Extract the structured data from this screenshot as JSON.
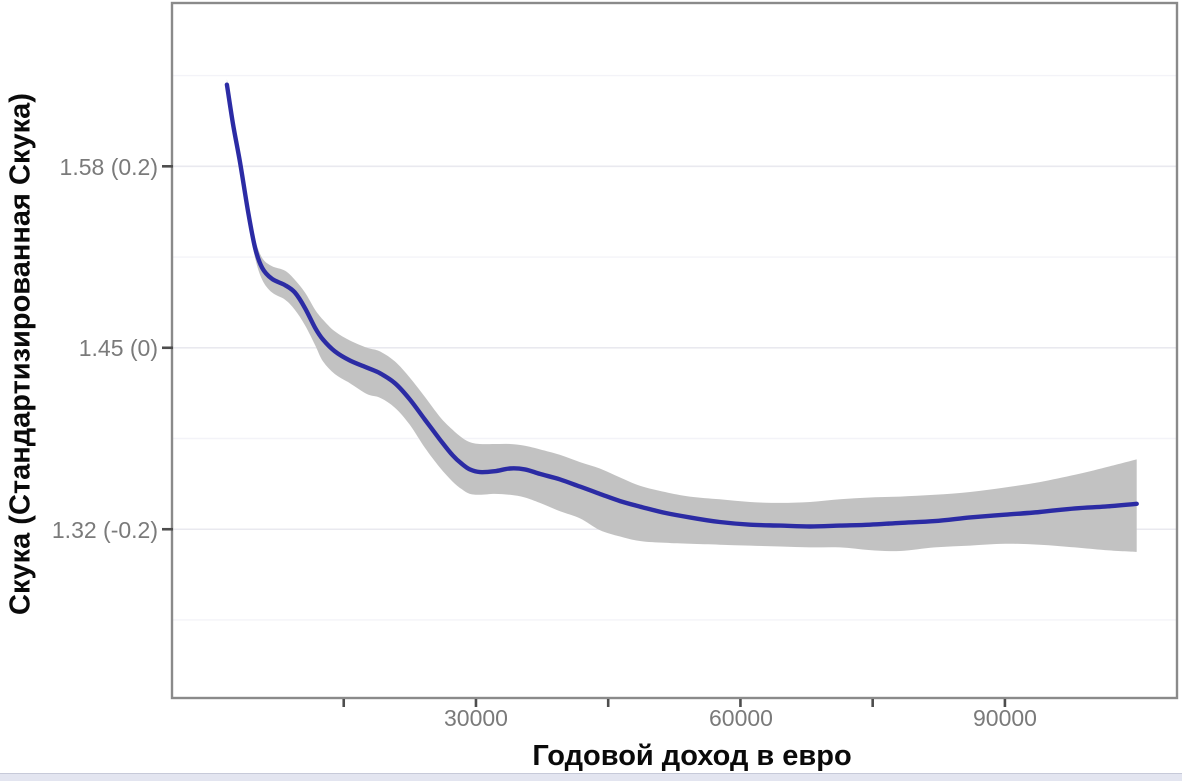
{
  "figure": {
    "background_color": "#ffffff",
    "bottom_strip_color": "#e3e5f0"
  },
  "chart_data": {
    "type": "line",
    "title": "",
    "xlabel": "Годовой доход в евро",
    "ylabel": "Скука (Стандартизированная Скука)",
    "legend": "none",
    "grid": "horizontal-only",
    "xlim": [
      -4480,
      109520
    ],
    "ylim": [
      -0.386,
      0.38
    ],
    "x_ticks": [
      {
        "value": 30000,
        "label": "30000"
      },
      {
        "value": 60000,
        "label": "60000"
      },
      {
        "value": 90000,
        "label": "90000"
      }
    ],
    "x_tick_values_all": [
      15000,
      30000,
      45000,
      60000,
      75000,
      90000
    ],
    "y_ticks": [
      {
        "value": 0.2,
        "label": "1.58 (0.2)"
      },
      {
        "value": 0.0,
        "label": "1.45 (0)"
      },
      {
        "value": -0.2,
        "label": "1.32 (-0.2)"
      }
    ],
    "y_minor_gridline_values": [
      0.3,
      0.1,
      -0.1,
      -0.3
    ],
    "colors": {
      "line": "#2626a3",
      "band": "#bfbfbf",
      "grid_major": "#e9e9ef",
      "grid_minor": "#f3f3f8",
      "panel_border": "#8a8a8a",
      "tick_mark": "#4d4d4d",
      "tick_label": "#7a7a7a",
      "axis_title": "#0a0a0a"
    },
    "series": [
      {
        "name": "loess-smooth-with-ci",
        "x": [
          1750,
          2450,
          3250,
          4150,
          4950,
          5750,
          6850,
          8350,
          9450,
          10600,
          11750,
          12650,
          14000,
          15700,
          17650,
          19100,
          20800,
          22500,
          24200,
          25900,
          27300,
          28400,
          29300,
          30450,
          32150,
          33850,
          35550,
          37250,
          39500,
          41800,
          44050,
          46350,
          48600,
          51450,
          54250,
          57650,
          61100,
          64500,
          67900,
          71300,
          74700,
          78100,
          82050,
          86050,
          90000,
          93950,
          97950,
          101350,
          104950
        ],
        "y": [
          0.29,
          0.246,
          0.204,
          0.15,
          0.11,
          0.088,
          0.076,
          0.069,
          0.061,
          0.044,
          0.022,
          0.009,
          -0.004,
          -0.014,
          -0.022,
          -0.028,
          -0.039,
          -0.057,
          -0.079,
          -0.101,
          -0.118,
          -0.128,
          -0.134,
          -0.137,
          -0.136,
          -0.133,
          -0.134,
          -0.139,
          -0.145,
          -0.153,
          -0.161,
          -0.169,
          -0.175,
          -0.182,
          -0.187,
          -0.192,
          -0.195,
          -0.196,
          -0.197,
          -0.196,
          -0.195,
          -0.193,
          -0.191,
          -0.187,
          -0.184,
          -0.181,
          -0.177,
          -0.175,
          -0.172
        ],
        "band_upper": [
          0.296,
          0.255,
          0.213,
          0.159,
          0.12,
          0.099,
          0.09,
          0.085,
          0.075,
          0.061,
          0.042,
          0.031,
          0.018,
          0.008,
          0.0,
          -0.004,
          -0.015,
          -0.033,
          -0.054,
          -0.076,
          -0.09,
          -0.099,
          -0.104,
          -0.106,
          -0.106,
          -0.106,
          -0.108,
          -0.112,
          -0.118,
          -0.126,
          -0.133,
          -0.143,
          -0.152,
          -0.159,
          -0.164,
          -0.167,
          -0.17,
          -0.171,
          -0.17,
          -0.167,
          -0.165,
          -0.164,
          -0.162,
          -0.159,
          -0.154,
          -0.148,
          -0.14,
          -0.132,
          -0.123
        ],
        "band_lower": [
          0.281,
          0.237,
          0.194,
          0.14,
          0.099,
          0.075,
          0.061,
          0.053,
          0.042,
          0.025,
          0.003,
          -0.015,
          -0.029,
          -0.039,
          -0.051,
          -0.055,
          -0.066,
          -0.085,
          -0.11,
          -0.132,
          -0.147,
          -0.156,
          -0.161,
          -0.162,
          -0.161,
          -0.162,
          -0.165,
          -0.171,
          -0.18,
          -0.188,
          -0.201,
          -0.208,
          -0.213,
          -0.215,
          -0.216,
          -0.217,
          -0.218,
          -0.219,
          -0.22,
          -0.22,
          -0.223,
          -0.224,
          -0.22,
          -0.218,
          -0.216,
          -0.217,
          -0.22,
          -0.223,
          -0.225
        ]
      }
    ]
  }
}
